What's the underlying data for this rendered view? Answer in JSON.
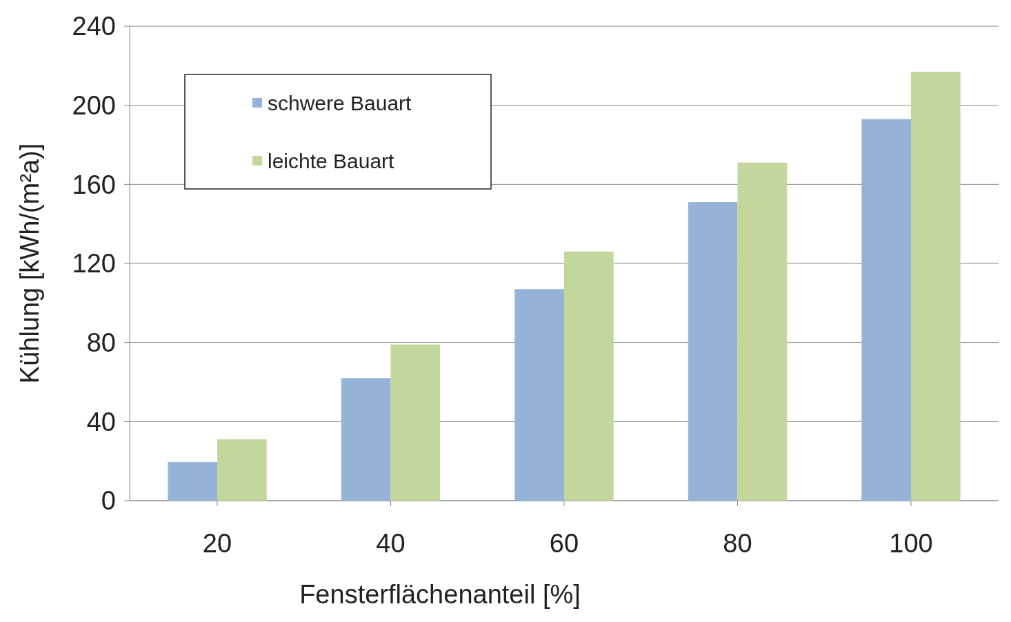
{
  "chart_data": {
    "type": "bar",
    "xlabel": "Fensterflächenanteil [%]",
    "ylabel": "Kühlung [kWh/(m²a)]",
    "categories": [
      "20",
      "40",
      "60",
      "80",
      "100"
    ],
    "series": [
      {
        "name": "schwere Bauart",
        "color": "#95b3d7",
        "values": [
          19.5,
          62,
          107,
          151,
          193
        ]
      },
      {
        "name": "leichte Bauart",
        "color": "#c3d69b",
        "values": [
          31,
          79,
          126,
          171,
          217
        ]
      }
    ],
    "ylim": [
      0,
      240
    ],
    "yticks": [
      0,
      40,
      80,
      120,
      160,
      200,
      240
    ],
    "grid": "y",
    "legend": "top left"
  }
}
